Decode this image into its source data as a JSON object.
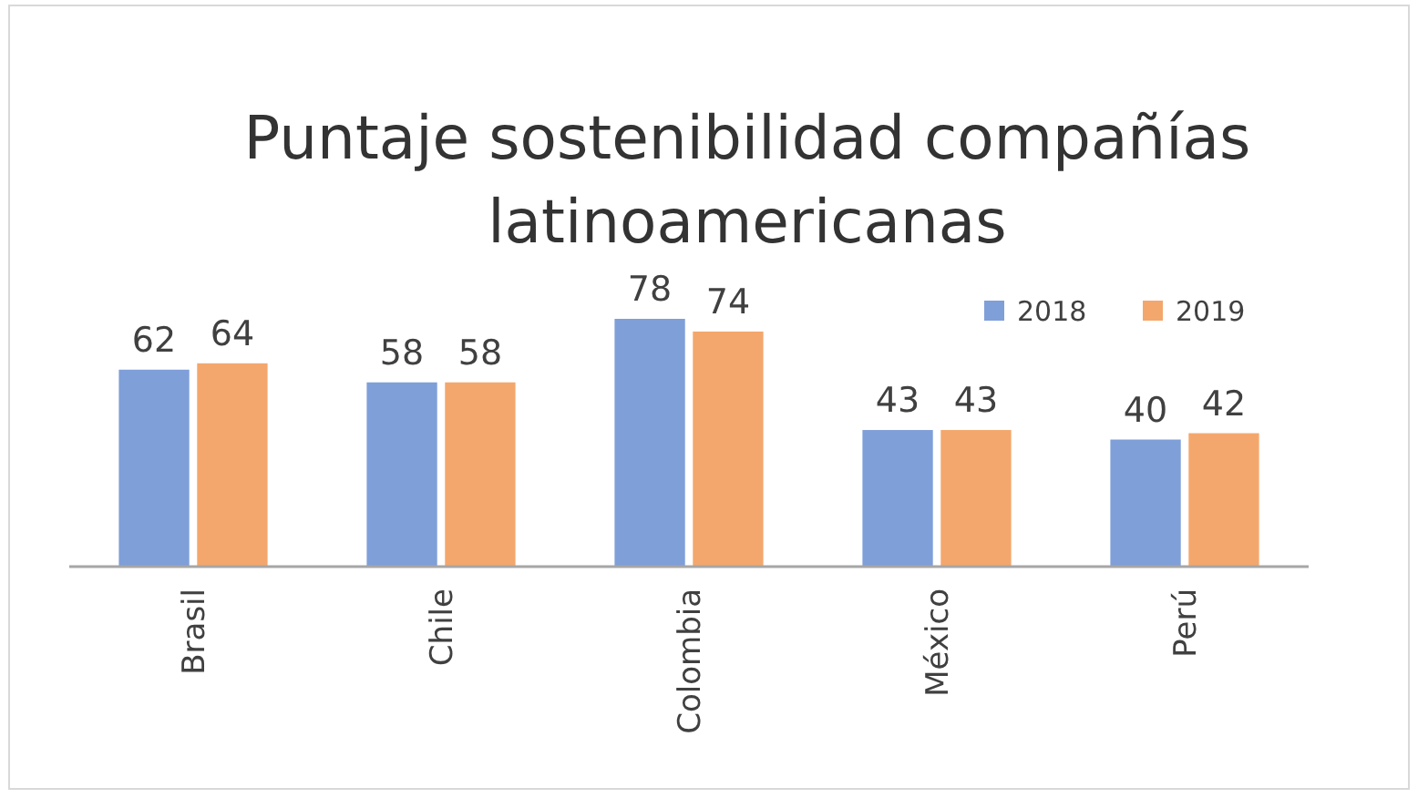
{
  "chart_data": {
    "type": "bar",
    "title": "Puntaje sostenibilidad compañías latinoamericanas",
    "categories": [
      "Brasil",
      "Chile",
      "Colombia",
      "México",
      "Perú"
    ],
    "series": [
      {
        "name": "2018",
        "color": "#7f9fd9",
        "values": [
          62,
          58,
          78,
          43,
          40
        ]
      },
      {
        "name": "2019",
        "color": "#f4a76c",
        "values": [
          64,
          58,
          74,
          43,
          42
        ]
      }
    ],
    "data_labels": true,
    "legend": "top right",
    "grid": false
  }
}
